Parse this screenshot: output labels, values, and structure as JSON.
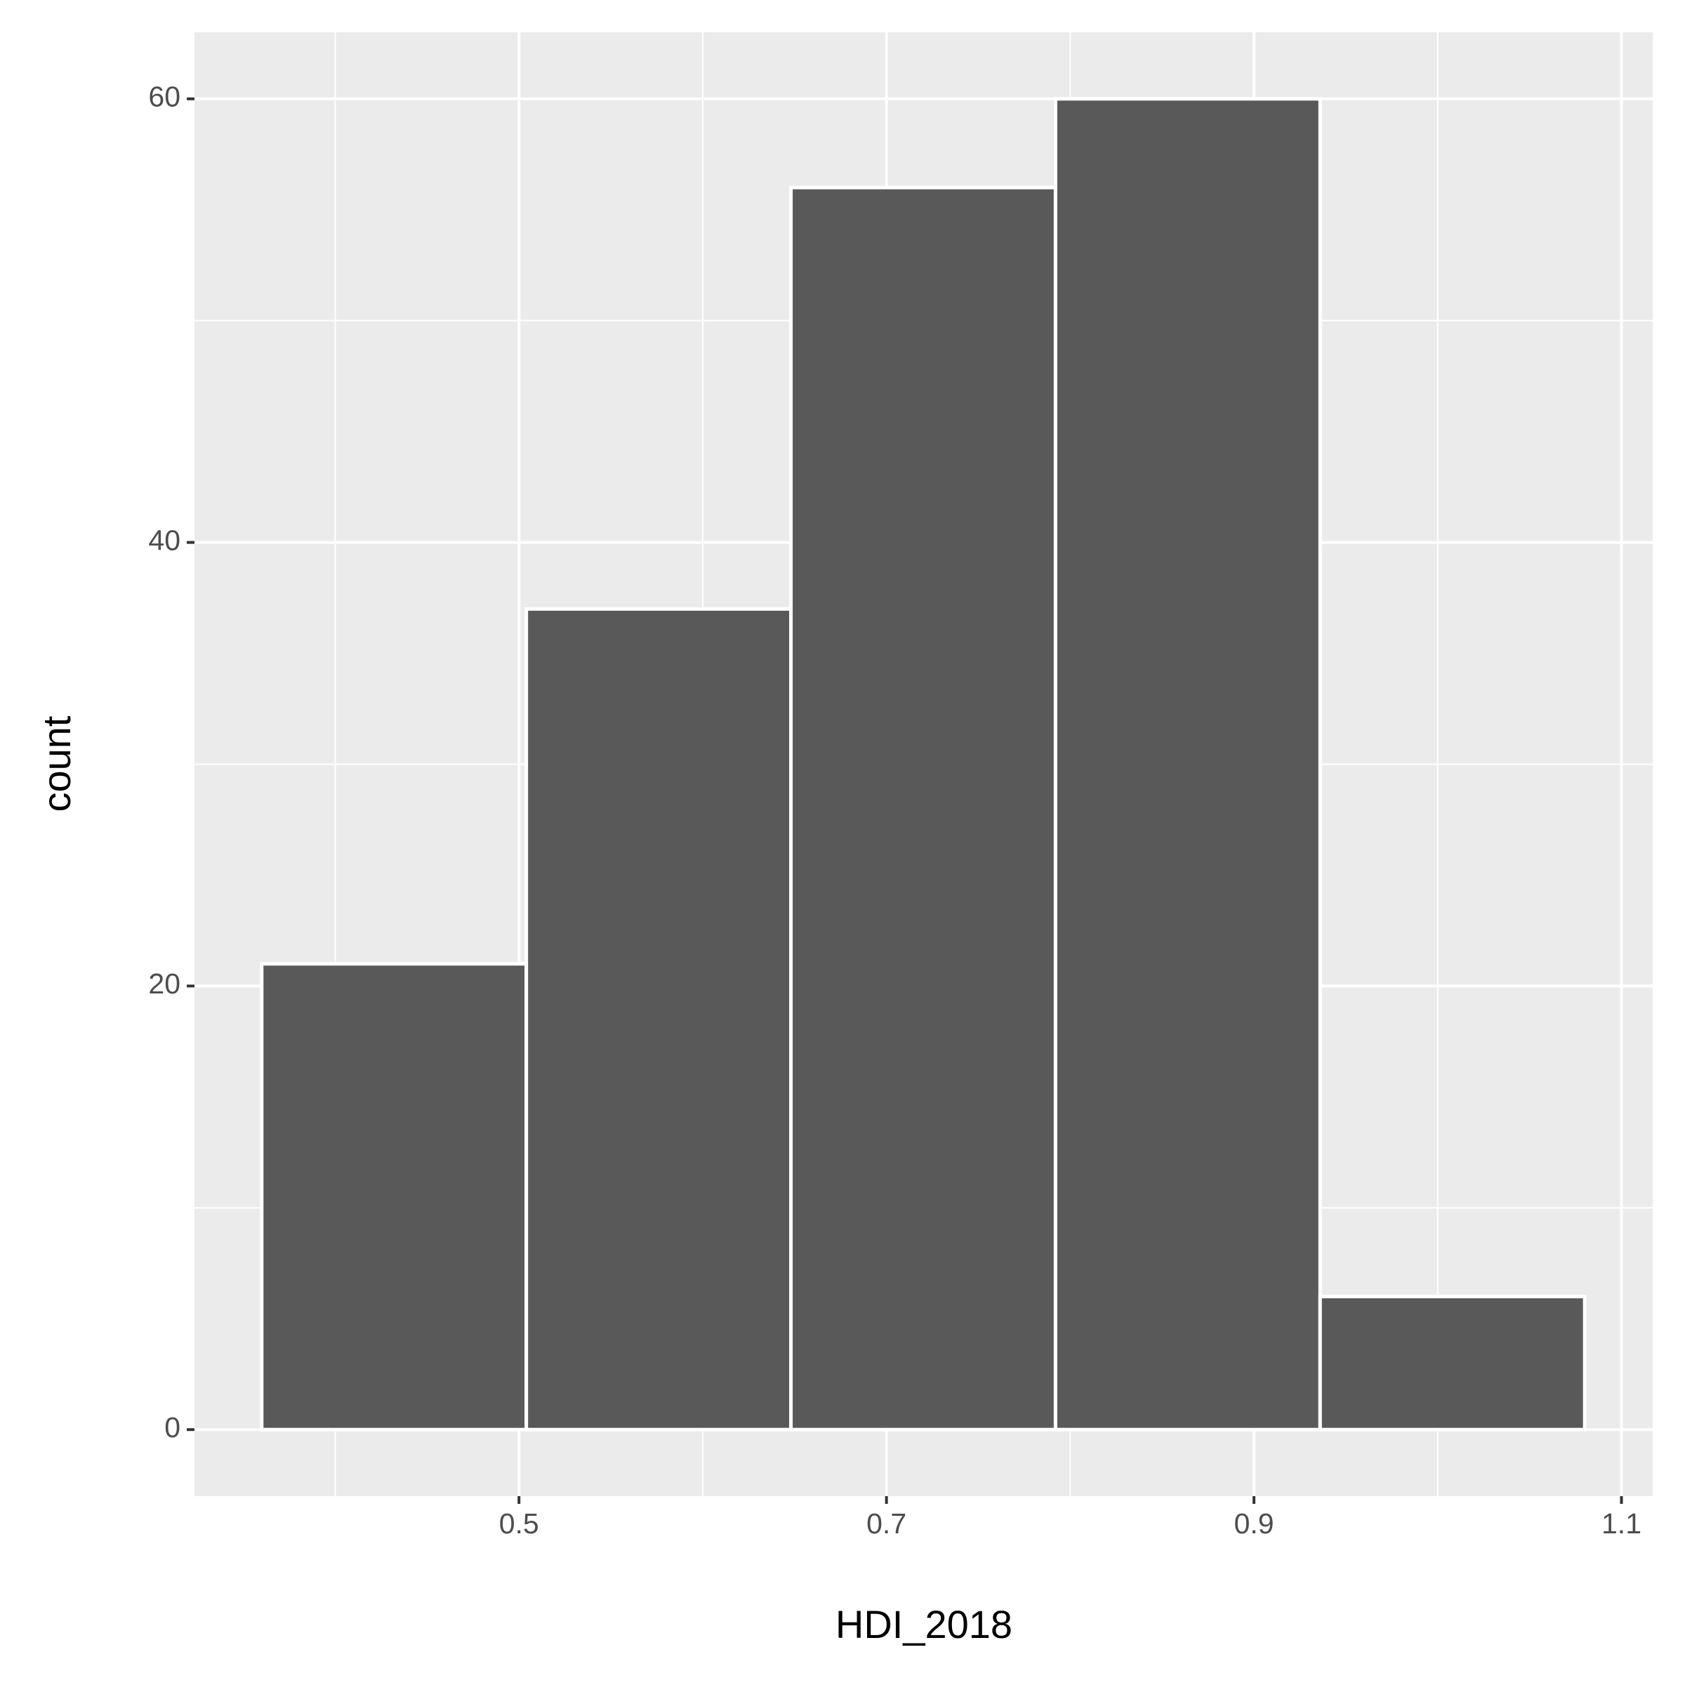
{
  "chart_data": {
    "type": "histogram",
    "x_label": "HDI_2018",
    "y_label": "count",
    "bins": [
      0.36,
      0.504,
      0.648,
      0.792,
      0.936,
      1.08
    ],
    "values": [
      21,
      37,
      56,
      60,
      6
    ],
    "color": "#595959",
    "edgecolor": "#ffffff",
    "xlim": [
      0.3234,
      1.117
    ],
    "ylim": [
      -3,
      63
    ],
    "xticks": [
      0.5,
      0.7,
      0.9,
      1.1
    ],
    "yticks": [
      0,
      20,
      40,
      60
    ],
    "xminor": [
      0.4,
      0.6,
      0.8,
      1.0
    ],
    "yminor": [
      10,
      30,
      50
    ],
    "grid": true,
    "panel_color": "#ebebeb"
  }
}
